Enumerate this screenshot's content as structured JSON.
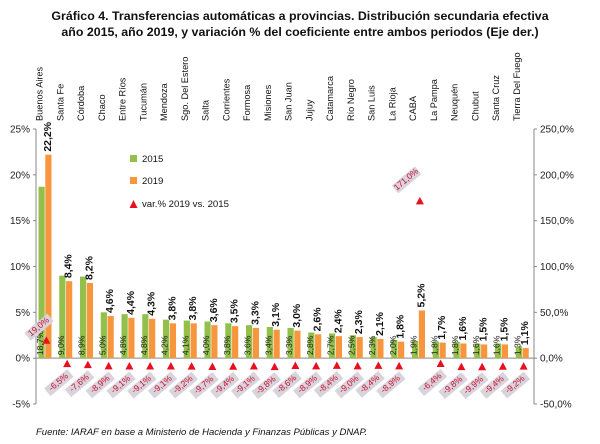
{
  "title_line1": "Gráfico 4. Transferencias automáticas a provincias. Distribución secundaria efectiva",
  "title_line2": "año 2015,  año 2019, y variación % del coeficiente entre ambos periodos (Eje der.)",
  "source": "Fuente: IARAF en base a Ministerio de Hacienda y Finanzas Públicas y DNAP.",
  "colors": {
    "s2015": "#92c04a",
    "s2019": "#f7963d",
    "var": "#e8101e",
    "var_box": "#d9d3dc"
  },
  "chart_data": {
    "type": "bar",
    "categories": [
      "Buenos Aires",
      "Santa Fe",
      "Córdoba",
      "Chaco",
      "Entre Ríos",
      "Tucumán",
      "Mendoza",
      "Sgo. Del Estero",
      "Salta",
      "Corrientes",
      "Formosa",
      "Misiones",
      "San Juan",
      "Jujuy",
      "Catamarca",
      "Río Negro",
      "San Luis",
      "La Rioja",
      "CABA",
      "La Pampa",
      "Neuquén",
      "Chubut",
      "Santa Cruz",
      "Tierra Del Fuego"
    ],
    "series": [
      {
        "name": "2015",
        "axis": "left",
        "values": [
          18.7,
          9.0,
          8.9,
          5.0,
          4.8,
          4.8,
          4.2,
          4.1,
          4.0,
          3.8,
          3.6,
          3.4,
          3.3,
          2.8,
          2.7,
          2.5,
          2.3,
          2.0,
          1.9,
          1.8,
          1.8,
          1.6,
          1.6,
          1.3
        ],
        "labels": [
          "18,7%",
          "9,0%",
          "8,9%",
          "5,0%",
          "4,8%",
          "4,8%",
          "4,2%",
          "4,1%",
          "4,0%",
          "3,8%",
          "3,6%",
          "3,4%",
          "3,3%",
          "2,8%",
          "2,7%",
          "2,5%",
          "2,3%",
          "2,0%",
          "1,9%",
          "1,8%",
          "1,8%",
          "1,6%",
          "1,6%",
          "1,3%"
        ]
      },
      {
        "name": "2019",
        "axis": "left",
        "values": [
          22.2,
          8.4,
          8.2,
          4.6,
          4.4,
          4.3,
          3.8,
          3.8,
          3.6,
          3.5,
          3.3,
          3.1,
          3.0,
          2.6,
          2.4,
          2.3,
          2.1,
          1.8,
          5.2,
          1.7,
          1.6,
          1.5,
          1.5,
          1.1
        ],
        "labels": [
          "22,2%",
          "8,4%",
          "8,2%",
          "4,6%",
          "4,4%",
          "4,3%",
          "3,8%",
          "3,8%",
          "3,6%",
          "3,5%",
          "3,3%",
          "3,1%",
          "3,0%",
          "2,6%",
          "2,4%",
          "2,3%",
          "2,1%",
          "1,8%",
          "5,2%",
          "1,7%",
          "1,6%",
          "1,5%",
          "1,5%",
          "1,1%"
        ]
      },
      {
        "name": "var.% 2019 vs. 2015",
        "axis": "right",
        "values": [
          19.0,
          -6.5,
          -7.6,
          -8.9,
          -9.1,
          -9.1,
          -9.1,
          -9.2,
          -9.7,
          -9.4,
          -9.1,
          -9.8,
          -8.6,
          -8.9,
          -8.4,
          -9.0,
          -8.4,
          -8.9,
          171.0,
          -6.4,
          -9.8,
          -9.9,
          -9.4,
          -9.2
        ],
        "labels": [
          "19,0%",
          "-6,5%",
          "-7,6%",
          "-8,9%",
          "-9,1%",
          "-9,1%",
          "-9,1%",
          "-9,2%",
          "-9,7%",
          "-9,4%",
          "-9,1%",
          "-9,8%",
          "-8,6%",
          "-8,9%",
          "-8,4%",
          "-9,0%",
          "-8,4%",
          "-8,9%",
          "171,0%",
          "-6,4%",
          "-9,8%",
          "-9,9%",
          "-9,4%",
          "-9,2%"
        ]
      }
    ],
    "y_left": {
      "min": -5,
      "max": 25,
      "ticks": [
        "-5%",
        "0%",
        "5%",
        "10%",
        "15%",
        "20%",
        "25%"
      ],
      "tick_values": [
        -5,
        0,
        5,
        10,
        15,
        20,
        25
      ]
    },
    "y_right": {
      "min": -50,
      "max": 250,
      "ticks": [
        "-50,0%",
        "0,0%",
        "50,0%",
        "100,0%",
        "150,0%",
        "200,0%",
        "250,0%"
      ],
      "tick_values": [
        -50,
        0,
        50,
        100,
        150,
        200,
        250
      ]
    },
    "legend": [
      "2015",
      "2019",
      "var.% 2019 vs. 2015"
    ],
    "legend_position": "top-left",
    "grid": false
  }
}
